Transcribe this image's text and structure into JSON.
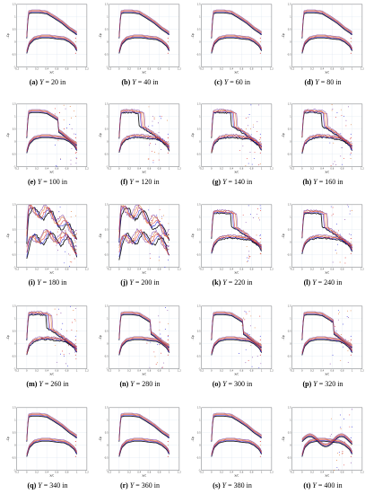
{
  "figure": {
    "panels": [
      {
        "id": "a",
        "label": "(a)",
        "var": "Y",
        "value": "= 20 in",
        "pattern": "clean"
      },
      {
        "id": "b",
        "label": "(b)",
        "var": "Y",
        "value": "= 40 in",
        "pattern": "clean"
      },
      {
        "id": "c",
        "label": "(c)",
        "var": "Y",
        "value": "= 60 in",
        "pattern": "clean"
      },
      {
        "id": "d",
        "label": "(d)",
        "var": "Y",
        "value": "= 80 in",
        "pattern": "clean"
      },
      {
        "id": "e",
        "label": "(e)",
        "var": "Y",
        "value": "= 100 in",
        "pattern": "shock"
      },
      {
        "id": "f",
        "label": "(f)",
        "var": "Y",
        "value": "= 120 in",
        "pattern": "shock-spread"
      },
      {
        "id": "g",
        "label": "(g)",
        "var": "Y",
        "value": "= 140 in",
        "pattern": "shock-spread"
      },
      {
        "id": "h",
        "label": "(h)",
        "var": "Y",
        "value": "= 160 in",
        "pattern": "shock-spread"
      },
      {
        "id": "i",
        "label": "(i)",
        "var": "Y",
        "value": "= 180 in",
        "pattern": "chaotic"
      },
      {
        "id": "j",
        "label": "(j)",
        "var": "Y",
        "value": "= 200 in",
        "pattern": "chaotic"
      },
      {
        "id": "k",
        "label": "(k)",
        "var": "Y",
        "value": "= 220 in",
        "pattern": "shock-spread"
      },
      {
        "id": "l",
        "label": "(l)",
        "var": "Y",
        "value": "= 240 in",
        "pattern": "shock-spread"
      },
      {
        "id": "m",
        "label": "(m)",
        "var": "Y",
        "value": "= 260 in",
        "pattern": "shock-spread"
      },
      {
        "id": "n",
        "label": "(n)",
        "var": "Y",
        "value": "= 280 in",
        "pattern": "shock"
      },
      {
        "id": "o",
        "label": "(o)",
        "var": "Y",
        "value": "= 300 in",
        "pattern": "shock"
      },
      {
        "id": "p",
        "label": "(p)",
        "var": "Y",
        "value": "= 320 in",
        "pattern": "shock"
      },
      {
        "id": "q",
        "label": "(q)",
        "var": "Y",
        "value": "= 340 in",
        "pattern": "clean"
      },
      {
        "id": "r",
        "label": "(r)",
        "var": "Y",
        "value": "= 360 in",
        "pattern": "clean"
      },
      {
        "id": "s",
        "label": "(s)",
        "var": "Y",
        "value": "= 380 in",
        "pattern": "clean"
      },
      {
        "id": "t",
        "label": "(t)",
        "var": "Y",
        "value": "= 400 in",
        "pattern": "wavy"
      }
    ]
  },
  "chart_data": {
    "type": "line",
    "xlabel": "x/c",
    "ylabel": "-Cp",
    "xlim": [
      -0.2,
      1.2
    ],
    "ylim": [
      -1.0,
      1.5
    ],
    "x_ticks": [
      "-0.2",
      "0",
      "0.2",
      "0.4",
      "0.6",
      "0.8",
      "1",
      "1.2"
    ],
    "y_ticks": [
      "1.5",
      "1",
      "0.5",
      "0",
      "-0.5",
      "-1"
    ],
    "grid": true,
    "series_colors": [
      "#000000",
      "#1f1fd8",
      "#d81f1f",
      "#d86a1f",
      "#7a3aa0"
    ],
    "upper_surface": {
      "x": [
        0.0,
        0.03,
        0.1,
        0.25,
        0.4,
        0.55,
        0.7,
        0.85,
        1.0
      ],
      "y": [
        0.2,
        1.18,
        1.22,
        1.22,
        1.18,
        1.0,
        0.8,
        0.55,
        0.35
      ]
    },
    "lower_surface": {
      "x": [
        0.0,
        0.05,
        0.15,
        0.3,
        0.45,
        0.6,
        0.75,
        0.85,
        0.95,
        1.0
      ],
      "y": [
        -0.4,
        -0.05,
        0.15,
        0.22,
        0.22,
        0.18,
        0.15,
        0.05,
        -0.12,
        -0.3
      ]
    }
  }
}
